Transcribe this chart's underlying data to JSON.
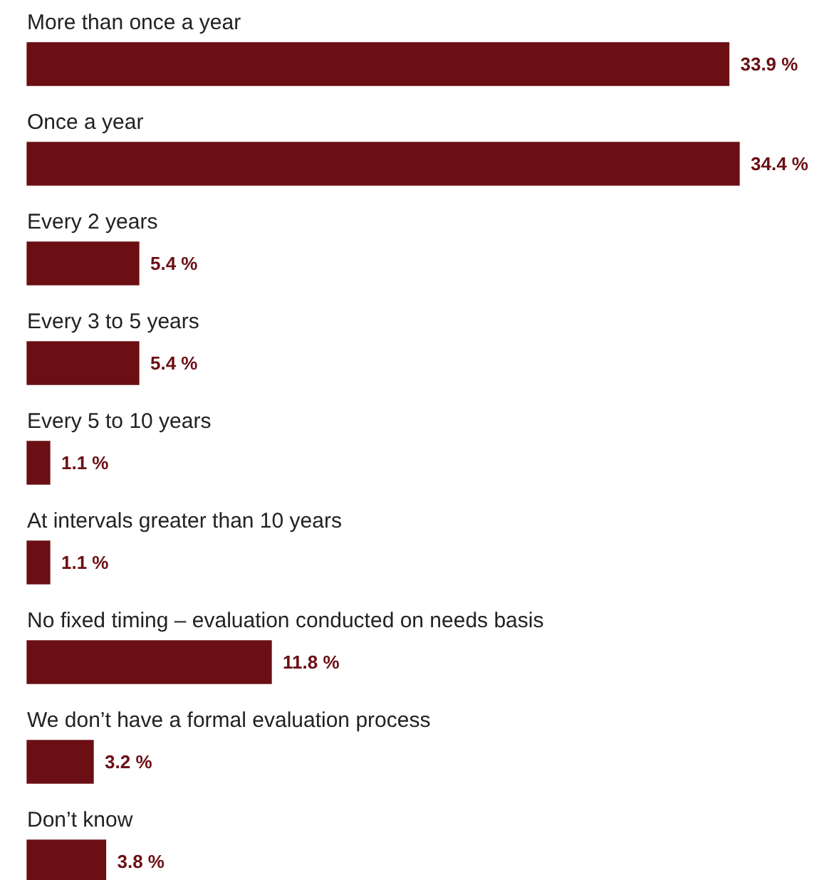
{
  "chart_data": {
    "type": "bar",
    "orientation": "horizontal",
    "categories": [
      "More than once a year",
      "Once a year",
      "Every 2 years",
      "Every 3 to 5 years",
      "Every 5 to 10 years",
      "At intervals greater than 10 years",
      "No fixed timing – evaluation conducted on needs basis",
      "We don’t have a formal evaluation process",
      "Don’t know"
    ],
    "values": [
      33.9,
      34.4,
      5.4,
      5.4,
      1.1,
      1.1,
      11.8,
      3.2,
      3.8
    ],
    "value_labels": [
      "33.9 %",
      "34.4 %",
      "5.4 %",
      "5.4 %",
      "1.1 %",
      "1.1 %",
      "11.8 %",
      "3.2 %",
      "3.8 %"
    ],
    "color": "#6b0f14"
  }
}
